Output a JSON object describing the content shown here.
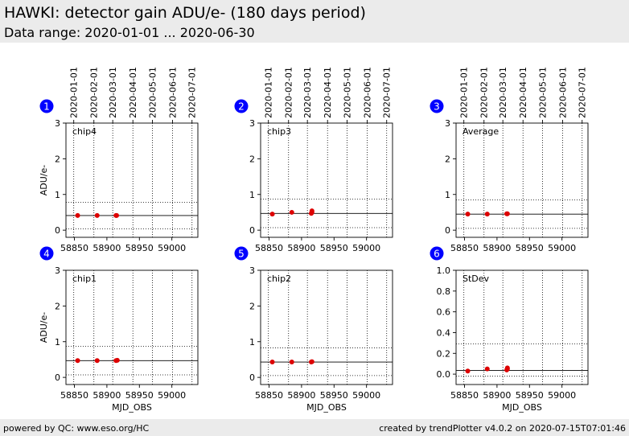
{
  "header": {
    "title": "HAWKI: detector gain ADU/e- (180 days period)",
    "subtitle": "Data range: 2020-01-01 ... 2020-06-30"
  },
  "footer": {
    "left": "powered by QC: www.eso.org/HC",
    "right": "created by trendPlotter v4.0.2 on 2020-07-15T07:01:46"
  },
  "colors": {
    "badge": "#0000ff",
    "point": "#dd0000",
    "header_bg": "#ebebeb"
  },
  "chart_data": [
    {
      "type": "scatter",
      "panel": "1",
      "label": "chip4",
      "ylabel": "ADU/e-",
      "xlabel": "",
      "xlim": [
        58837,
        59040
      ],
      "ylim": [
        -0.2,
        3
      ],
      "yticks": [
        0,
        1,
        2,
        3
      ],
      "ytick_labels": [
        "0",
        "1",
        "2",
        "3"
      ],
      "xticks": [
        58850,
        58900,
        58950,
        59000
      ],
      "xtick_labels": [
        "58850",
        "58900",
        "58950",
        "59000"
      ],
      "date_ticks": [
        "2020-01-01",
        "2020-02-01",
        "2020-03-01",
        "2020-04-01",
        "2020-05-01",
        "2020-06-01",
        "2020-07-01"
      ],
      "date_tick_mjd": [
        58849,
        58880,
        58909,
        58940,
        58970,
        59001,
        59031
      ],
      "mean": 0.41,
      "upper_limit": 0.78,
      "lower_limit": 0.04,
      "x": [
        58855,
        58885,
        58914,
        58915
      ],
      "y": [
        0.41,
        0.41,
        0.41,
        0.41
      ]
    },
    {
      "type": "scatter",
      "panel": "2",
      "label": "chip3",
      "ylabel": "",
      "xlabel": "",
      "xlim": [
        58837,
        59040
      ],
      "ylim": [
        -0.2,
        3
      ],
      "yticks": [
        0,
        1,
        2,
        3
      ],
      "ytick_labels": [
        "0",
        "1",
        "2",
        "3"
      ],
      "xticks": [
        58850,
        58900,
        58950,
        59000
      ],
      "xtick_labels": [
        "58850",
        "58900",
        "58950",
        "59000"
      ],
      "date_ticks": [
        "2020-01-01",
        "2020-02-01",
        "2020-03-01",
        "2020-04-01",
        "2020-05-01",
        "2020-06-01",
        "2020-07-01"
      ],
      "date_tick_mjd": [
        58849,
        58880,
        58909,
        58940,
        58970,
        59001,
        59031
      ],
      "mean": 0.47,
      "upper_limit": 0.87,
      "lower_limit": 0.07,
      "x": [
        58855,
        58885,
        58915,
        58916,
        58916
      ],
      "y": [
        0.45,
        0.5,
        0.47,
        0.5,
        0.54
      ]
    },
    {
      "type": "scatter",
      "panel": "3",
      "label": "Average",
      "ylabel": "",
      "xlabel": "",
      "xlim": [
        58837,
        59040
      ],
      "ylim": [
        -0.2,
        3
      ],
      "yticks": [
        0,
        1,
        2,
        3
      ],
      "ytick_labels": [
        "0",
        "1",
        "2",
        "3"
      ],
      "xticks": [
        58850,
        58900,
        58950,
        59000
      ],
      "xtick_labels": [
        "58850",
        "58900",
        "58950",
        "59000"
      ],
      "date_ticks": [
        "2020-01-01",
        "2020-02-01",
        "2020-03-01",
        "2020-04-01",
        "2020-05-01",
        "2020-06-01",
        "2020-07-01"
      ],
      "date_tick_mjd": [
        58849,
        58880,
        58909,
        58940,
        58970,
        59001,
        59031
      ],
      "mean": 0.45,
      "upper_limit": 0.85,
      "lower_limit": 0.05,
      "x": [
        58855,
        58885,
        58915,
        58916
      ],
      "y": [
        0.45,
        0.45,
        0.46,
        0.46
      ]
    },
    {
      "type": "scatter",
      "panel": "4",
      "label": "chip1",
      "ylabel": "ADU/e-",
      "xlabel": "MJD_OBS",
      "xlim": [
        58837,
        59040
      ],
      "ylim": [
        -0.2,
        3
      ],
      "yticks": [
        0,
        1,
        2,
        3
      ],
      "ytick_labels": [
        "0",
        "1",
        "2",
        "3"
      ],
      "xticks": [
        58850,
        58900,
        58950,
        59000
      ],
      "xtick_labels": [
        "58850",
        "58900",
        "58950",
        "59000"
      ],
      "date_ticks": [],
      "date_tick_mjd": [
        58849,
        58880,
        58909,
        58940,
        58970,
        59001,
        59031
      ],
      "mean": 0.47,
      "upper_limit": 0.87,
      "lower_limit": 0.07,
      "x": [
        58855,
        58885,
        58914,
        58916
      ],
      "y": [
        0.47,
        0.47,
        0.47,
        0.48
      ]
    },
    {
      "type": "scatter",
      "panel": "5",
      "label": "chip2",
      "ylabel": "",
      "xlabel": "MJD_OBS",
      "xlim": [
        58837,
        59040
      ],
      "ylim": [
        -0.2,
        3
      ],
      "yticks": [
        0,
        1,
        2,
        3
      ],
      "ytick_labels": [
        "0",
        "1",
        "2",
        "3"
      ],
      "xticks": [
        58850,
        58900,
        58950,
        59000
      ],
      "xtick_labels": [
        "58850",
        "58900",
        "58950",
        "59000"
      ],
      "date_ticks": [],
      "date_tick_mjd": [
        58849,
        58880,
        58909,
        58940,
        58970,
        59001,
        59031
      ],
      "mean": 0.43,
      "upper_limit": 0.83,
      "lower_limit": 0.05,
      "x": [
        58855,
        58885,
        58915,
        58916
      ],
      "y": [
        0.43,
        0.43,
        0.43,
        0.44
      ]
    },
    {
      "type": "scatter",
      "panel": "6",
      "label": "StDev",
      "ylabel": "",
      "xlabel": "MJD_OBS",
      "xlim": [
        58837,
        59040
      ],
      "ylim": [
        -0.1,
        1.0
      ],
      "yticks": [
        0,
        0.2,
        0.4,
        0.6,
        0.8,
        1.0
      ],
      "ytick_labels": [
        "0.0",
        "0.2",
        "0.4",
        "0.6",
        "0.8",
        "1.0"
      ],
      "xticks": [
        58850,
        58900,
        58950,
        59000
      ],
      "xtick_labels": [
        "58850",
        "58900",
        "58950",
        "59000"
      ],
      "date_ticks": [],
      "date_tick_mjd": [
        58849,
        58880,
        58909,
        58940,
        58970,
        59001,
        59031
      ],
      "mean": 0.035,
      "upper_limit": 0.29,
      "lower_limit": -0.02,
      "x": [
        58855,
        58885,
        58915,
        58916,
        58916
      ],
      "y": [
        0.03,
        0.05,
        0.04,
        0.05,
        0.06
      ]
    }
  ]
}
